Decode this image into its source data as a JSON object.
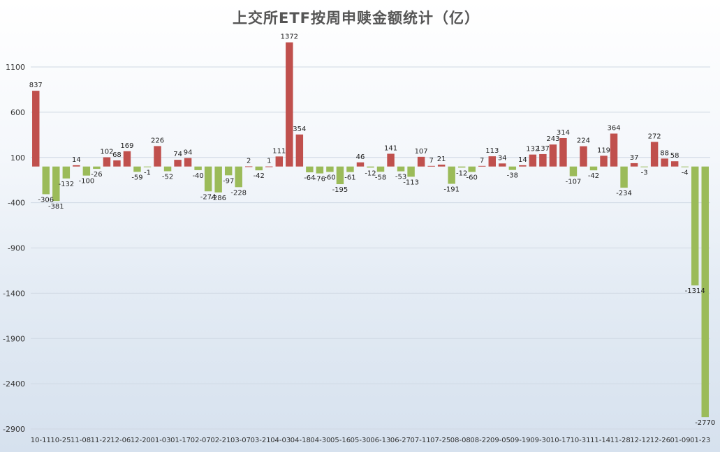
{
  "chart_data": {
    "type": "bar",
    "title": "上交所ETF按周申赎金额统计（亿）",
    "xlabel": "",
    "ylabel": "",
    "ylim": [
      -2900,
      1600
    ],
    "yticks": [
      1100,
      600,
      100,
      -400,
      -900,
      -1400,
      -1900,
      -2400,
      -2900
    ],
    "grid": "horizontal",
    "legend": "none",
    "positive_color": "#c0504d",
    "negative_color": "#9bbb59",
    "tick_labels": [
      "10-11",
      "10-25",
      "11-08",
      "11-22",
      "12-06",
      "12-20",
      "01-03",
      "01-17",
      "02-07",
      "02-21",
      "03-07",
      "03-21",
      "04-03",
      "04-18",
      "04-30",
      "05-16",
      "05-30",
      "06-13",
      "06-27",
      "07-11",
      "07-25",
      "08-08",
      "08-22",
      "09-05",
      "09-19",
      "09-30",
      "10-17",
      "10-31",
      "11-14",
      "11-28",
      "12-12",
      "12-26",
      "01-09",
      "01-23"
    ],
    "values": [
      837,
      -306,
      -381,
      -132,
      14,
      -100,
      -26,
      102,
      68,
      169,
      -59,
      -1,
      226,
      -52,
      74,
      94,
      -40,
      -274,
      -286,
      -97,
      -228,
      2,
      -42,
      1,
      111,
      1372,
      354,
      -64,
      -76,
      -60,
      -195,
      -61,
      46,
      -12,
      -58,
      141,
      -53,
      -113,
      107,
      7,
      21,
      -191,
      -12,
      -60,
      7,
      113,
      34,
      -38,
      14,
      132,
      137,
      243,
      314,
      -107,
      224,
      -42,
      119,
      364,
      -234,
      37,
      -3,
      272,
      88,
      58,
      -4,
      -1314,
      -2770
    ]
  }
}
